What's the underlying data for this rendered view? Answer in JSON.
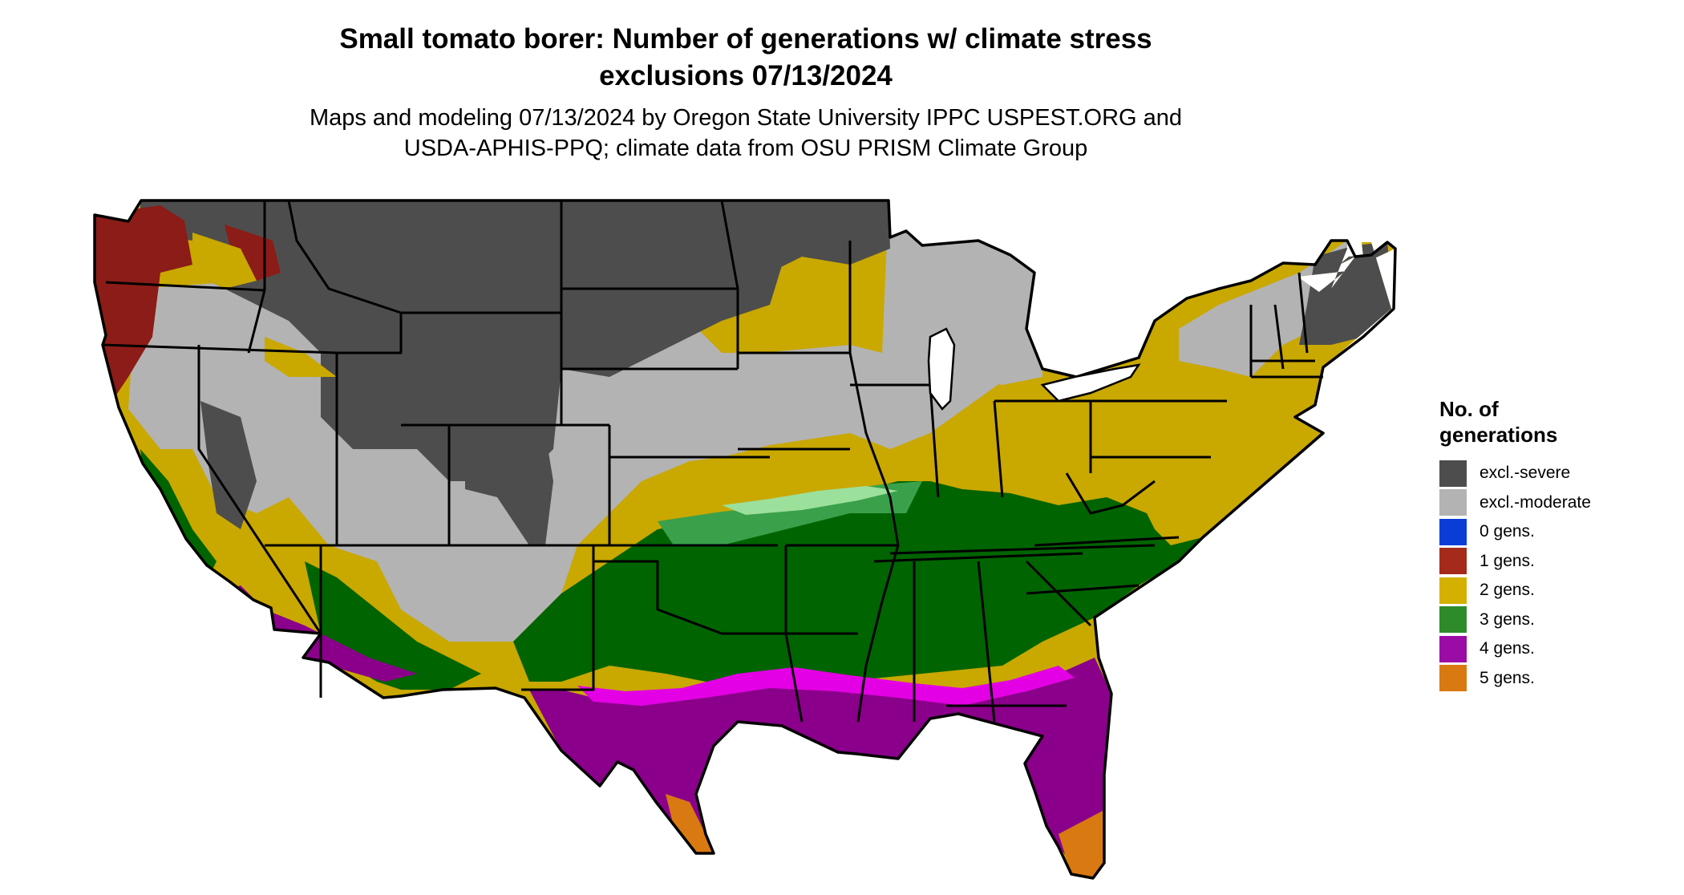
{
  "title": {
    "line1": "Small tomato borer: Number of generations w/ climate stress",
    "line2": "exclusions 07/13/2024"
  },
  "subtitle": {
    "line1": "Maps and modeling 07/13/2024 by Oregon State University IPPC USPEST.ORG and",
    "line2": "USDA-APHIS-PPQ; climate data from OSU PRISM Climate Group"
  },
  "legend": {
    "title_line1": "No. of",
    "title_line2": "generations",
    "items": [
      {
        "label": "excl.-severe",
        "color": "#4d4d4d"
      },
      {
        "label": "excl.-moderate",
        "color": "#b3b3b3"
      },
      {
        "label": "0 gens.",
        "color": "#0a3dd6"
      },
      {
        "label": "1 gens.",
        "color": "#a52a1a"
      },
      {
        "label": "2 gens.",
        "color": "#d4b100"
      },
      {
        "label": "3 gens.",
        "color": "#2e8b2a"
      },
      {
        "label": "4 gens.",
        "color": "#9b0ba6"
      },
      {
        "label": "5 gens.",
        "color": "#d97912"
      }
    ]
  },
  "map": {
    "region": "contiguous United States",
    "palette": {
      "severe": "#4d4d4d",
      "moderate": "#b3b3b3",
      "one": "#8b1c17",
      "two": "#c9a800",
      "three": "#006400",
      "three_light": "#3aa04a",
      "three_pale": "#9be09b",
      "four": "#8a008a",
      "four_bright": "#e400e4",
      "five": "#d97912",
      "border": "#000000",
      "water": "#ffffff"
    }
  }
}
